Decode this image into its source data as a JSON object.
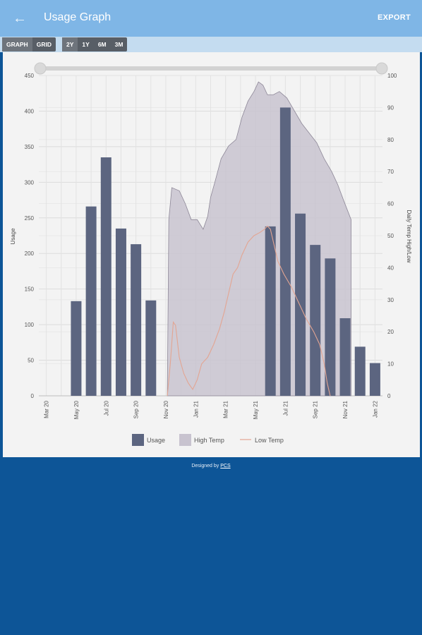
{
  "header": {
    "title": "Usage Graph",
    "export_label": "EXPORT"
  },
  "toolbar": {
    "view_buttons": [
      "GRAPH",
      "GRID"
    ],
    "range_buttons": [
      "2Y",
      "1Y",
      "6M",
      "3M"
    ]
  },
  "footer": {
    "text": "Designed by",
    "link": "PCS"
  },
  "colors": {
    "usage": "#5c6580",
    "high_temp": "#c8c3cf",
    "low_temp": "#e3a592",
    "appbar": "#7fb6e6",
    "background": "#0d5597"
  },
  "chart_data": {
    "type": "bar",
    "categories": [
      "Mar 20",
      "Apr 20",
      "May 20",
      "Jun 20",
      "Jul 20",
      "Aug 20",
      "Sep 20",
      "Oct 20",
      "Nov 20",
      "Dec 20",
      "Jan 21",
      "Feb 21",
      "Mar 21",
      "Apr 21",
      "May 21",
      "Jun 21",
      "Jul 21",
      "Aug 21",
      "Sep 21",
      "Oct 21",
      "Nov 21",
      "Dec 21",
      "Jan 22"
    ],
    "x_tick_labels": [
      "Mar 20",
      "May 20",
      "Jul 20",
      "Sep 20",
      "Nov 20",
      "Jan 21",
      "Mar 21",
      "May 21",
      "Jul 21",
      "Sep 21",
      "Nov 21",
      "Jan 22"
    ],
    "series": [
      {
        "name": "Usage",
        "axis": "left",
        "type": "bar",
        "values": [
          0,
          0,
          133,
          266,
          335,
          235,
          213,
          134,
          0,
          0,
          0,
          0,
          0,
          0,
          0,
          238,
          405,
          256,
          212,
          193,
          109,
          69,
          46
        ]
      },
      {
        "name": "High Temp",
        "axis": "right",
        "type": "area",
        "points": [
          [
            8.1,
            0
          ],
          [
            8.2,
            55
          ],
          [
            8.4,
            65
          ],
          [
            8.9,
            64
          ],
          [
            9.3,
            60
          ],
          [
            9.7,
            55
          ],
          [
            10.1,
            55
          ],
          [
            10.5,
            52
          ],
          [
            10.8,
            56
          ],
          [
            11.0,
            62
          ],
          [
            11.3,
            67
          ],
          [
            11.7,
            74
          ],
          [
            12.2,
            78
          ],
          [
            12.7,
            80
          ],
          [
            13.1,
            87
          ],
          [
            13.5,
            92
          ],
          [
            13.9,
            95
          ],
          [
            14.2,
            98
          ],
          [
            14.5,
            97
          ],
          [
            14.8,
            94
          ],
          [
            15.2,
            94
          ],
          [
            15.6,
            95
          ],
          [
            16.1,
            93
          ],
          [
            16.6,
            89
          ],
          [
            17.1,
            85
          ],
          [
            17.6,
            82
          ],
          [
            18.1,
            79
          ],
          [
            18.6,
            74
          ],
          [
            19.1,
            70
          ],
          [
            19.5,
            66
          ],
          [
            19.9,
            61
          ],
          [
            20.4,
            55
          ],
          [
            20.4,
            0
          ]
        ]
      },
      {
        "name": "Low Temp",
        "axis": "right",
        "type": "line",
        "points": [
          [
            8.1,
            0
          ],
          [
            8.3,
            10
          ],
          [
            8.5,
            23
          ],
          [
            8.65,
            22
          ],
          [
            8.9,
            12
          ],
          [
            9.2,
            7
          ],
          [
            9.5,
            4
          ],
          [
            9.8,
            2
          ],
          [
            10.1,
            5
          ],
          [
            10.4,
            10
          ],
          [
            10.8,
            12
          ],
          [
            11.2,
            16
          ],
          [
            11.6,
            21
          ],
          [
            11.9,
            26
          ],
          [
            12.2,
            32
          ],
          [
            12.5,
            38
          ],
          [
            12.8,
            40
          ],
          [
            13.1,
            44
          ],
          [
            13.5,
            48
          ],
          [
            13.9,
            50
          ],
          [
            14.3,
            51
          ],
          [
            14.6,
            52
          ],
          [
            14.8,
            53
          ],
          [
            15.0,
            52
          ],
          [
            15.2,
            48
          ],
          [
            15.5,
            42
          ],
          [
            15.9,
            38
          ],
          [
            16.4,
            34
          ],
          [
            16.9,
            29
          ],
          [
            17.4,
            24
          ],
          [
            17.9,
            20
          ],
          [
            18.3,
            16
          ],
          [
            18.6,
            10
          ],
          [
            18.8,
            4
          ],
          [
            19.0,
            0
          ]
        ]
      }
    ],
    "x_range": [
      -0.5,
      22.5
    ],
    "ylabel": "Usage",
    "y_right_label": "Daily Temp High/Low",
    "ylim": [
      0,
      450
    ],
    "y_ticks": [
      0,
      50,
      100,
      150,
      200,
      250,
      300,
      350,
      400,
      450
    ],
    "y_right_lim": [
      0,
      100
    ],
    "y_right_ticks": [
      0,
      10,
      20,
      30,
      40,
      50,
      60,
      70,
      80,
      90,
      100
    ],
    "grid": true,
    "legend": {
      "position": "bottom",
      "entries": [
        "Usage",
        "High Temp",
        "Low Temp"
      ]
    }
  }
}
